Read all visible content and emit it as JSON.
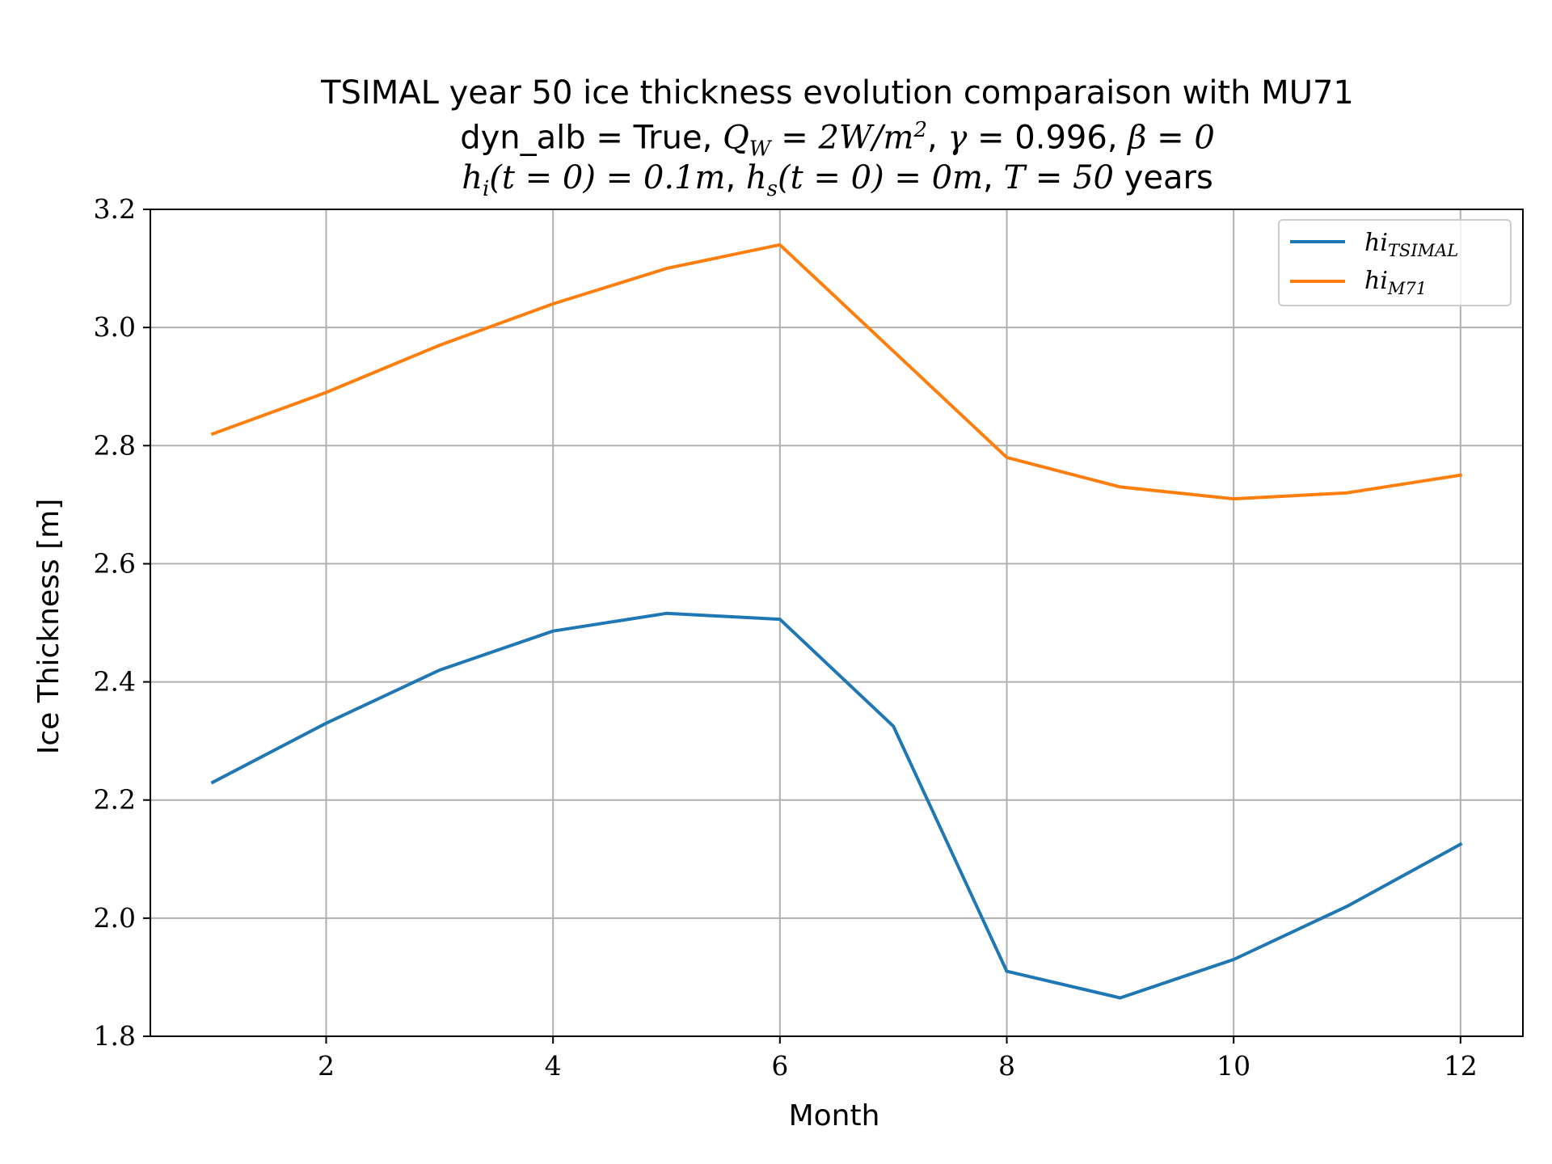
{
  "chart_data": {
    "type": "line",
    "title_lines": [
      "TSIMAL year 50 ice thickness evolution comparaison with MU71",
      "dyn_alb = True, Q_W = 2W/m^2, γ = 0.996, β = 0",
      "h_i(t = 0) = 0.1m, h_s(t = 0) = 0m, T = 50 years"
    ],
    "title_parts": {
      "line1": "TSIMAL year 50 ice thickness evolution comparaison with MU71",
      "dyn_alb_label": "dyn_alb",
      "dyn_alb_value": "True",
      "qw_symbol": "Q",
      "qw_sub": "W",
      "qw_value": "2W/m",
      "qw_exp": "2",
      "gamma_symbol": "γ",
      "gamma_value": "0.996",
      "beta_symbol": "β",
      "beta_value": "0",
      "hi_symbol": "h",
      "hi_sub": "i",
      "hi_arg": "(t = 0) = 0.1m",
      "hs_symbol": "h",
      "hs_sub": "s",
      "hs_arg": "(t = 0) = 0m",
      "T_symbol": "T",
      "T_value": "50",
      "T_unit": "years"
    },
    "xlabel": "Month",
    "ylabel": "Ice Thickness [m]",
    "xlim": [
      0.45,
      12.55
    ],
    "ylim": [
      1.8,
      3.2
    ],
    "xticks": [
      2,
      4,
      6,
      8,
      10,
      12
    ],
    "xtick_labels": [
      "2",
      "4",
      "6",
      "8",
      "10",
      "12"
    ],
    "yticks": [
      1.8,
      2.0,
      2.2,
      2.4,
      2.6,
      2.8,
      3.0,
      3.2
    ],
    "ytick_labels": [
      "1.8",
      "2.0",
      "2.2",
      "2.4",
      "2.6",
      "2.8",
      "3.0",
      "3.2"
    ],
    "grid": true,
    "legend_position": "top-right",
    "x": [
      1,
      2,
      3,
      4,
      5,
      6,
      7,
      8,
      9,
      10,
      11,
      12
    ],
    "series": [
      {
        "name": "hi_TSIMAL",
        "legend_base": "hi",
        "legend_sub": "TSIMAL",
        "color": "#1f77b4",
        "values": [
          2.23,
          2.33,
          2.42,
          2.486,
          2.516,
          2.506,
          2.325,
          1.91,
          1.865,
          1.93,
          2.02,
          2.125
        ]
      },
      {
        "name": "hi_M71",
        "legend_base": "hi",
        "legend_sub": "M71",
        "color": "#ff7f0e",
        "values": [
          2.82,
          2.89,
          2.97,
          3.04,
          3.1,
          3.14,
          2.96,
          2.78,
          2.73,
          2.71,
          2.72,
          2.75
        ]
      }
    ]
  }
}
